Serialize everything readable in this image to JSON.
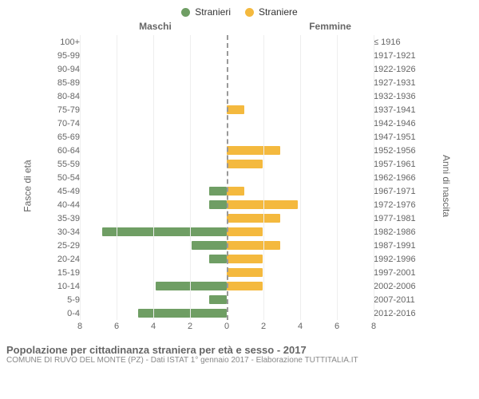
{
  "legend": {
    "male": {
      "label": "Stranieri",
      "color": "#6f9e64"
    },
    "female": {
      "label": "Straniere",
      "color": "#f4b93e"
    }
  },
  "headers": {
    "male": "Maschi",
    "female": "Femmine"
  },
  "axis_titles": {
    "left": "Fasce di età",
    "right": "Anni di nascita"
  },
  "chart": {
    "type": "population-pyramid",
    "x_max": 8,
    "x_ticks": [
      8,
      6,
      4,
      2,
      0,
      2,
      4,
      6,
      8
    ],
    "background_color": "#ffffff",
    "grid_color": "#eeeeee",
    "center_line_color": "#999999",
    "bar_height_ratio": 0.7,
    "male_color": "#6f9e64",
    "female_color": "#f4b93e",
    "rows": [
      {
        "age": "100+",
        "birth": "≤ 1916",
        "m": 0,
        "f": 0
      },
      {
        "age": "95-99",
        "birth": "1917-1921",
        "m": 0,
        "f": 0
      },
      {
        "age": "90-94",
        "birth": "1922-1926",
        "m": 0,
        "f": 0
      },
      {
        "age": "85-89",
        "birth": "1927-1931",
        "m": 0,
        "f": 0
      },
      {
        "age": "80-84",
        "birth": "1932-1936",
        "m": 0,
        "f": 0
      },
      {
        "age": "75-79",
        "birth": "1937-1941",
        "m": 0,
        "f": 1
      },
      {
        "age": "70-74",
        "birth": "1942-1946",
        "m": 0,
        "f": 0
      },
      {
        "age": "65-69",
        "birth": "1947-1951",
        "m": 0,
        "f": 0
      },
      {
        "age": "60-64",
        "birth": "1952-1956",
        "m": 0,
        "f": 3
      },
      {
        "age": "55-59",
        "birth": "1957-1961",
        "m": 0,
        "f": 2
      },
      {
        "age": "50-54",
        "birth": "1962-1966",
        "m": 0,
        "f": 0
      },
      {
        "age": "45-49",
        "birth": "1967-1971",
        "m": 1,
        "f": 1
      },
      {
        "age": "40-44",
        "birth": "1972-1976",
        "m": 1,
        "f": 4
      },
      {
        "age": "35-39",
        "birth": "1977-1981",
        "m": 0,
        "f": 3
      },
      {
        "age": "30-34",
        "birth": "1982-1986",
        "m": 7,
        "f": 2
      },
      {
        "age": "25-29",
        "birth": "1987-1991",
        "m": 2,
        "f": 3
      },
      {
        "age": "20-24",
        "birth": "1992-1996",
        "m": 1,
        "f": 2
      },
      {
        "age": "15-19",
        "birth": "1997-2001",
        "m": 0,
        "f": 2
      },
      {
        "age": "10-14",
        "birth": "2002-2006",
        "m": 4,
        "f": 2
      },
      {
        "age": "5-9",
        "birth": "2007-2011",
        "m": 1,
        "f": 0
      },
      {
        "age": "0-4",
        "birth": "2012-2016",
        "m": 5,
        "f": 0
      }
    ]
  },
  "footer": {
    "title": "Popolazione per cittadinanza straniera per età e sesso - 2017",
    "subtitle": "COMUNE DI RUVO DEL MONTE (PZ) - Dati ISTAT 1° gennaio 2017 - Elaborazione TUTTITALIA.IT"
  }
}
